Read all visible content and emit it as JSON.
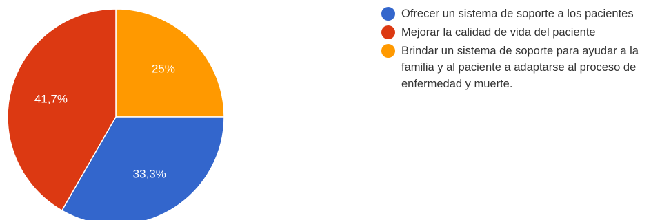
{
  "chart_data": {
    "type": "pie",
    "title": "",
    "legend_position": "right",
    "slices": [
      {
        "name": "Ofrecer un sistema de soporte a los pacientes",
        "value": 33.3,
        "label": "33,3%",
        "color": "#3366cc"
      },
      {
        "name": "Mejorar la calidad de vida del paciente",
        "value": 41.7,
        "label": "41,7%",
        "color": "#dc3912"
      },
      {
        "name": "Brindar un sistema de soporte para ayudar a la familia y al paciente a adaptarse al proceso de enfermedad y muerte.",
        "value": 25,
        "label": "25%",
        "color": "#ff9900"
      }
    ]
  }
}
